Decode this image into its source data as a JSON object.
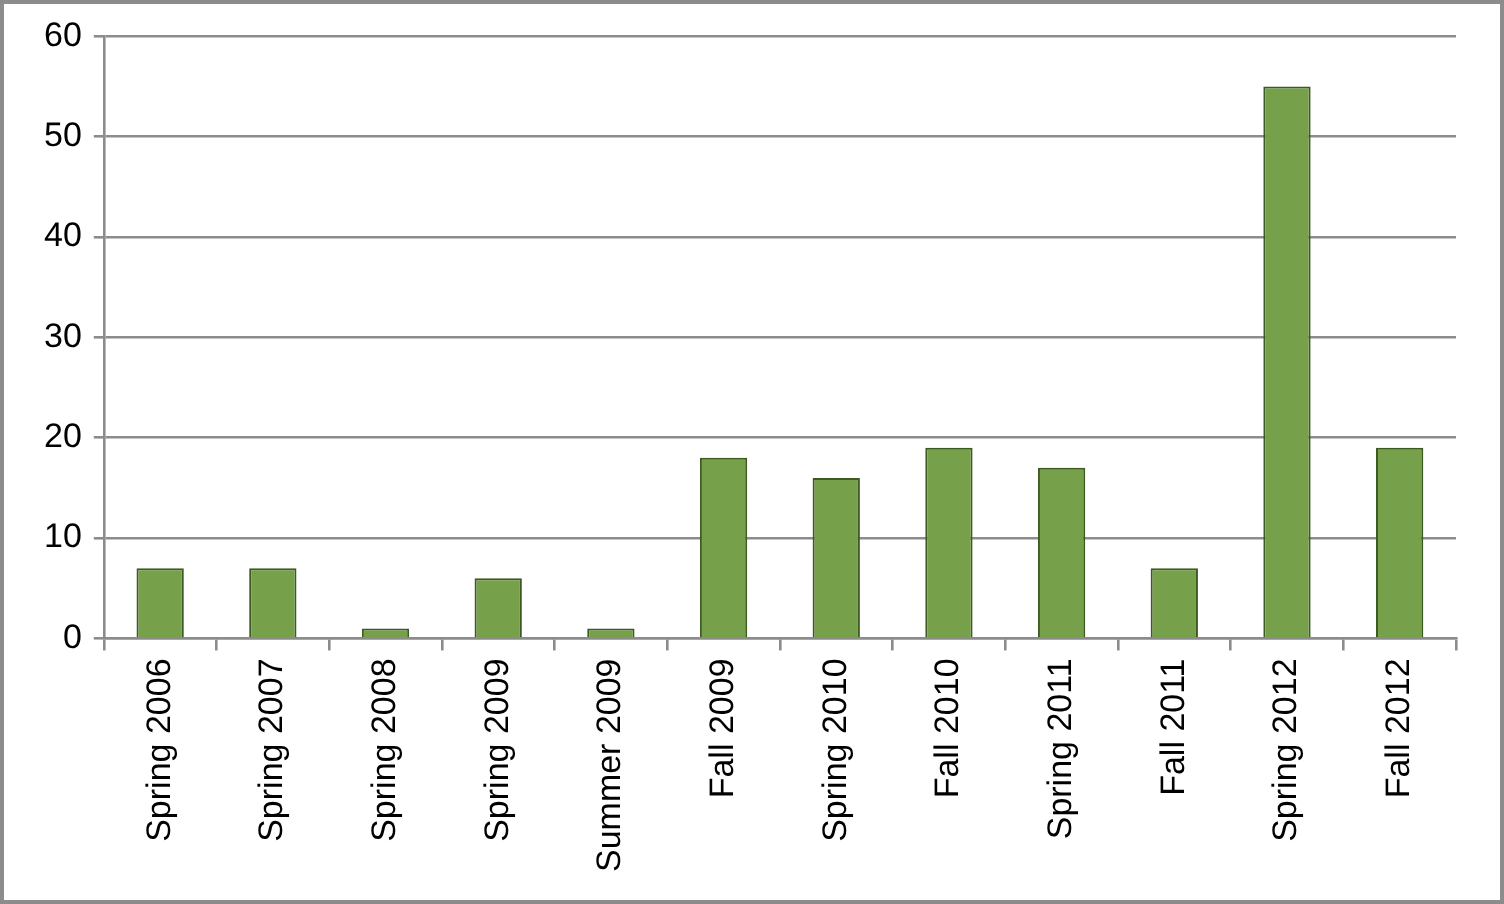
{
  "chart_data": {
    "type": "bar",
    "categories": [
      "Spring 2006",
      "Spring 2007",
      "Spring 2008",
      "Spring 2009",
      "Summer 2009",
      "Fall 2009",
      "Spring 2010",
      "Fall 2010",
      "Spring 2011",
      "Fall 2011",
      "Spring 2012",
      "Fall 2012"
    ],
    "values": [
      7,
      7,
      1,
      6,
      1,
      18,
      16,
      19,
      17,
      7,
      55,
      19
    ],
    "color": "#77a04a",
    "ylim": [
      0,
      60
    ],
    "yticks": [
      0,
      10,
      20,
      30,
      40,
      50,
      60
    ],
    "grid": "y"
  }
}
